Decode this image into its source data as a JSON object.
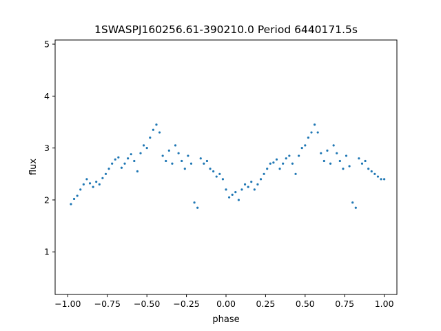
{
  "chart_data": {
    "type": "scatter",
    "title": "1SWASPJ160256.61-390210.0 Period 6440171.5s",
    "xlabel": "phase",
    "ylabel": "flux",
    "xlim": [
      -1.08,
      1.08
    ],
    "ylim": [
      0.18,
      5.08
    ],
    "xticks": [
      -1.0,
      -0.75,
      -0.5,
      -0.25,
      0.0,
      0.25,
      0.5,
      0.75,
      1.0
    ],
    "xtick_labels": [
      "−1.00",
      "−0.75",
      "−0.50",
      "−0.25",
      "0.00",
      "0.25",
      "0.50",
      "0.75",
      "1.00"
    ],
    "yticks": [
      1,
      2,
      3,
      4,
      5
    ],
    "ytick_labels": [
      "1",
      "2",
      "3",
      "4",
      "5"
    ],
    "grid": false,
    "marker_color": "#1f77b4",
    "series": [
      {
        "points": [
          [
            -0.98,
            1.92
          ],
          [
            -0.96,
            2.02
          ],
          [
            -0.94,
            2.08
          ],
          [
            -0.92,
            2.2
          ],
          [
            -0.9,
            2.3
          ],
          [
            -0.88,
            2.4
          ],
          [
            -0.86,
            2.32
          ],
          [
            -0.84,
            2.25
          ],
          [
            -0.82,
            2.35
          ],
          [
            -0.8,
            2.3
          ],
          [
            -0.78,
            2.42
          ],
          [
            -0.76,
            2.5
          ],
          [
            -0.74,
            2.6
          ],
          [
            -0.72,
            2.7
          ],
          [
            -0.7,
            2.78
          ],
          [
            -0.68,
            2.82
          ],
          [
            -0.66,
            2.62
          ],
          [
            -0.64,
            2.7
          ],
          [
            -0.62,
            2.8
          ],
          [
            -0.6,
            2.88
          ],
          [
            -0.58,
            2.75
          ],
          [
            -0.56,
            2.55
          ],
          [
            -0.54,
            2.9
          ],
          [
            -0.52,
            3.05
          ],
          [
            -0.5,
            3.0
          ],
          [
            -0.48,
            3.2
          ],
          [
            -0.46,
            3.35
          ],
          [
            -0.44,
            3.45
          ],
          [
            -0.42,
            3.3
          ],
          [
            -0.4,
            2.85
          ],
          [
            -0.38,
            2.75
          ],
          [
            -0.36,
            2.95
          ],
          [
            -0.34,
            2.7
          ],
          [
            -0.32,
            3.05
          ],
          [
            -0.3,
            2.9
          ],
          [
            -0.28,
            2.75
          ],
          [
            -0.26,
            2.6
          ],
          [
            -0.24,
            2.85
          ],
          [
            -0.22,
            2.7
          ],
          [
            -0.2,
            1.95
          ],
          [
            -0.18,
            1.85
          ],
          [
            -0.16,
            2.8
          ],
          [
            -0.14,
            2.7
          ],
          [
            -0.12,
            2.75
          ],
          [
            -0.1,
            2.6
          ],
          [
            -0.08,
            2.55
          ],
          [
            -0.06,
            2.45
          ],
          [
            -0.04,
            2.5
          ],
          [
            -0.02,
            2.4
          ],
          [
            0.0,
            2.2
          ],
          [
            0.02,
            2.05
          ],
          [
            0.04,
            2.1
          ],
          [
            0.06,
            2.15
          ],
          [
            0.08,
            2.0
          ],
          [
            0.1,
            2.2
          ],
          [
            0.12,
            2.3
          ],
          [
            0.14,
            2.25
          ],
          [
            0.16,
            2.35
          ],
          [
            0.18,
            2.2
          ],
          [
            0.2,
            2.3
          ],
          [
            0.22,
            2.4
          ],
          [
            0.24,
            2.5
          ],
          [
            0.26,
            2.6
          ],
          [
            0.28,
            2.7
          ],
          [
            0.3,
            2.72
          ],
          [
            0.32,
            2.78
          ],
          [
            0.34,
            2.6
          ],
          [
            0.36,
            2.7
          ],
          [
            0.38,
            2.8
          ],
          [
            0.4,
            2.85
          ],
          [
            0.42,
            2.7
          ],
          [
            0.44,
            2.5
          ],
          [
            0.46,
            2.85
          ],
          [
            0.48,
            3.0
          ],
          [
            0.5,
            3.05
          ],
          [
            0.52,
            3.2
          ],
          [
            0.54,
            3.3
          ],
          [
            0.56,
            3.45
          ],
          [
            0.58,
            3.3
          ],
          [
            0.6,
            2.9
          ],
          [
            0.62,
            2.75
          ],
          [
            0.64,
            2.95
          ],
          [
            0.66,
            2.7
          ],
          [
            0.68,
            3.05
          ],
          [
            0.7,
            2.9
          ],
          [
            0.72,
            2.75
          ],
          [
            0.74,
            2.6
          ],
          [
            0.76,
            2.85
          ],
          [
            0.78,
            2.65
          ],
          [
            0.8,
            1.95
          ],
          [
            0.82,
            1.85
          ],
          [
            0.84,
            2.8
          ],
          [
            0.86,
            2.7
          ],
          [
            0.88,
            2.75
          ],
          [
            0.9,
            2.6
          ],
          [
            0.92,
            2.55
          ],
          [
            0.94,
            2.5
          ],
          [
            0.96,
            2.45
          ],
          [
            0.98,
            2.4
          ],
          [
            1.0,
            2.4
          ]
        ]
      }
    ]
  }
}
